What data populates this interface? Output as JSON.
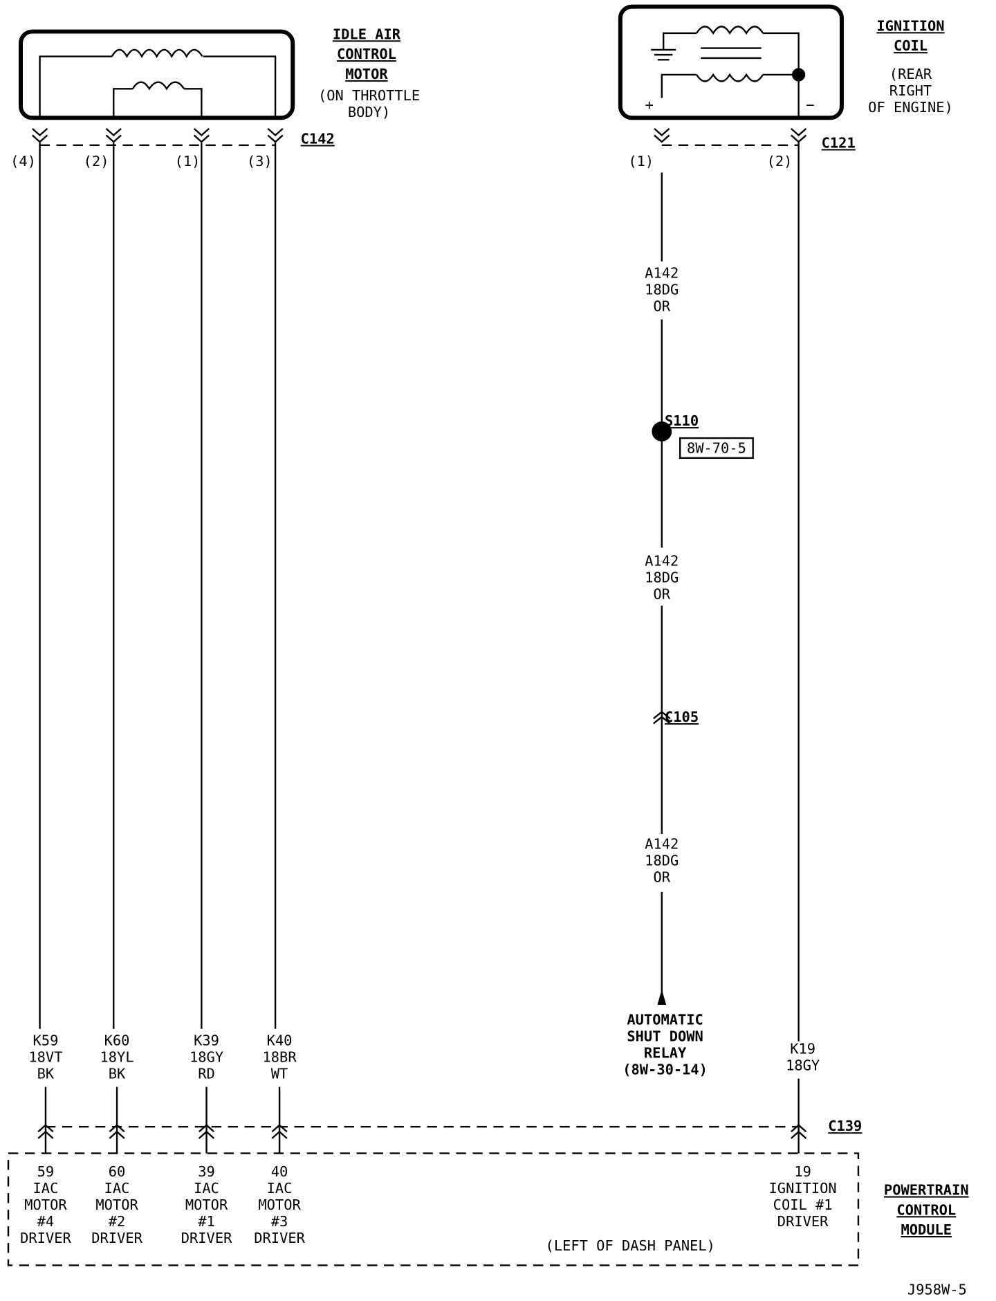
{
  "iac_motor": {
    "title": [
      "IDLE AIR",
      "CONTROL",
      "MOTOR"
    ],
    "note": [
      "(ON THROTTLE",
      "BODY)"
    ]
  },
  "ignition_coil": {
    "title": [
      "IGNITION",
      "COIL"
    ],
    "note": [
      "(REAR",
      "RIGHT",
      "OF ENGINE)"
    ],
    "plus": "+",
    "minus": "−"
  },
  "c142": {
    "name": "C142",
    "pins": [
      "(4)",
      "(2)",
      "(1)",
      "(3)"
    ]
  },
  "c121": {
    "name": "C121",
    "pins": [
      "(1)",
      "(2)"
    ]
  },
  "iac_wires": [
    [
      "K59",
      "18VT",
      "BK"
    ],
    [
      "K60",
      "18YL",
      "BK"
    ],
    [
      "K39",
      "18GY",
      "RD"
    ],
    [
      "K40",
      "18BR",
      "WT"
    ]
  ],
  "asd_wire": [
    [
      "A142",
      "18DG",
      "OR"
    ],
    [
      "A142",
      "18DG",
      "OR"
    ],
    [
      "A142",
      "18DG",
      "OR"
    ]
  ],
  "splice": {
    "name": "S110",
    "ref": "8W-70-5"
  },
  "c105": "C105",
  "asd_relay": [
    "AUTOMATIC",
    "SHUT DOWN",
    "RELAY",
    "(8W-30-14)"
  ],
  "coil_wire": [
    "K19",
    "18GY"
  ],
  "c139": "C139",
  "pcm": {
    "title": [
      "POWERTRAIN",
      "CONTROL",
      "MODULE"
    ],
    "note": "(LEFT OF DASH PANEL)",
    "pins": [
      [
        "59",
        "IAC",
        "MOTOR",
        "#4",
        "DRIVER"
      ],
      [
        "60",
        "IAC",
        "MOTOR",
        "#2",
        "DRIVER"
      ],
      [
        "39",
        "IAC",
        "MOTOR",
        "#1",
        "DRIVER"
      ],
      [
        "40",
        "IAC",
        "MOTOR",
        "#3",
        "DRIVER"
      ],
      [
        "19",
        "IGNITION",
        "COIL #1",
        "DRIVER"
      ]
    ]
  },
  "footer": "J958W-5"
}
